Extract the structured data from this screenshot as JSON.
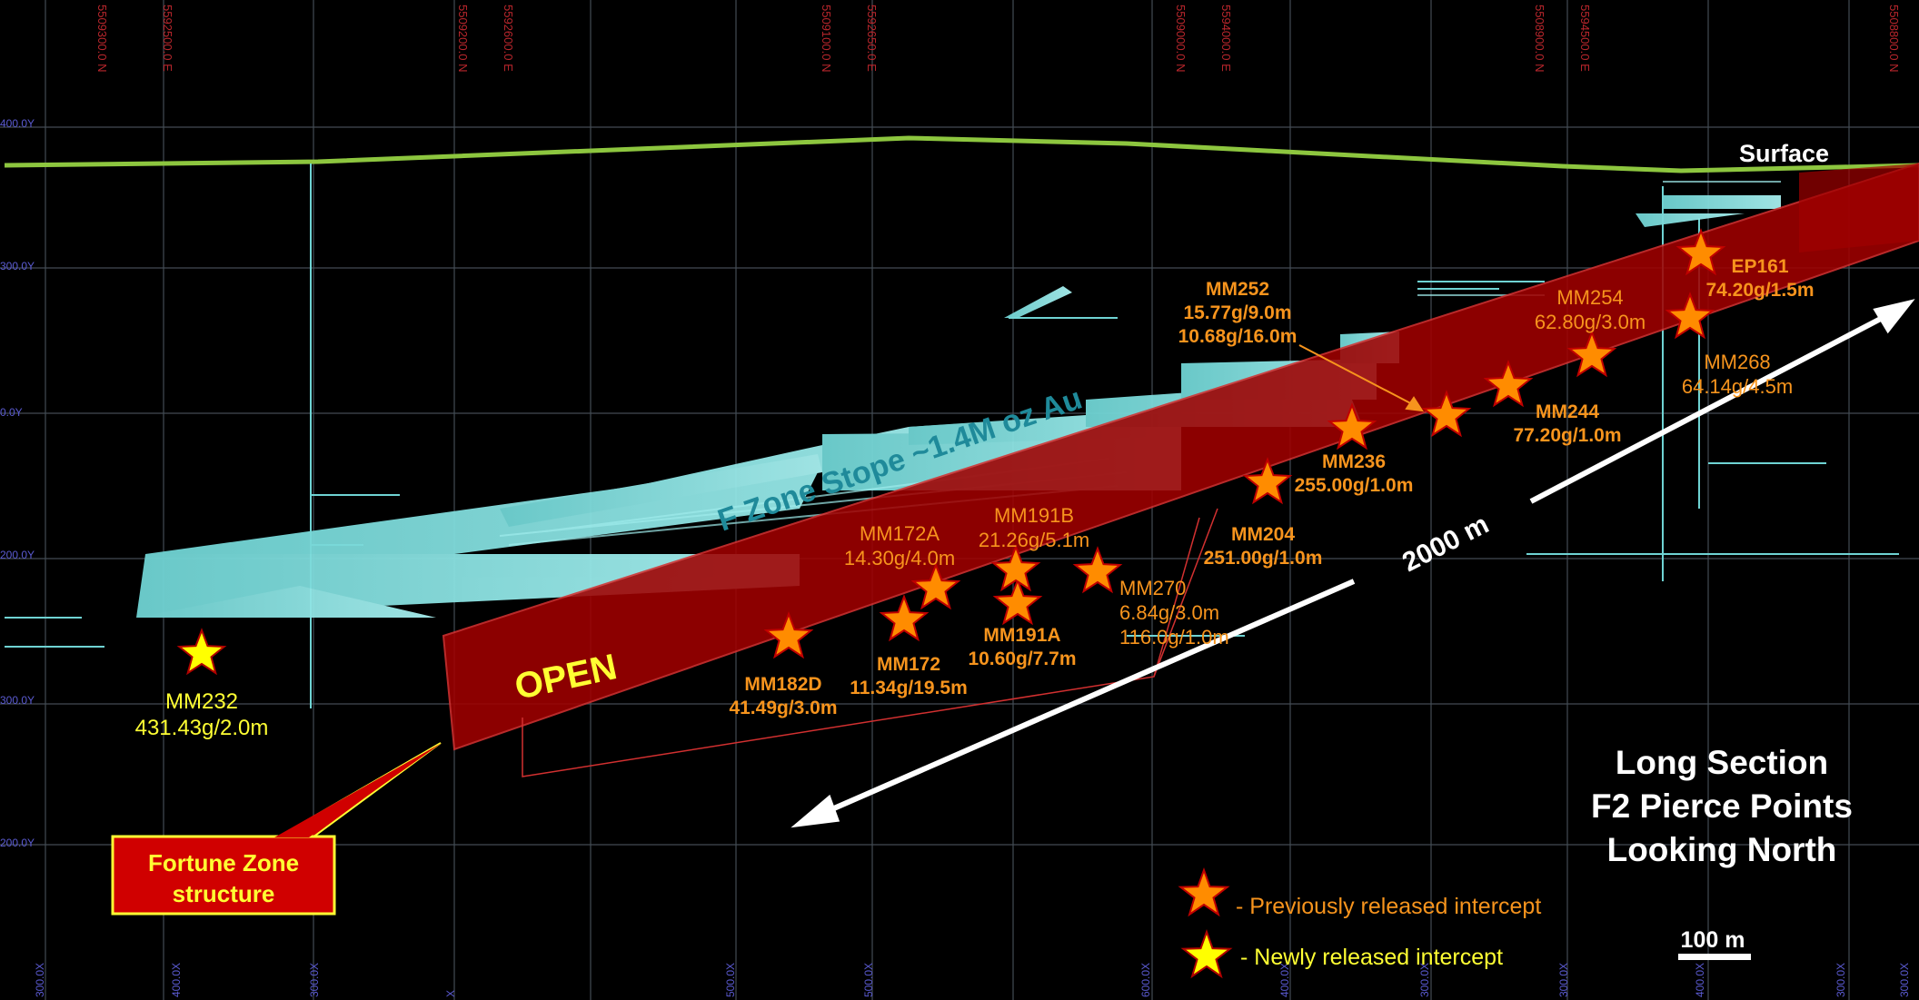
{
  "title": {
    "line1": "Long Section",
    "line2": "F2 Pierce Points",
    "line3": "Looking North"
  },
  "surface_label": "Surface",
  "stope_label": "F Zone Stope ~1.4M oz Au",
  "open_label": "OPEN",
  "distance_label": "2000 m",
  "structure_callout": {
    "line1": "Fortune Zone",
    "line2": "structure"
  },
  "scale_bar": {
    "label": "100 m"
  },
  "legend": {
    "previous": "- Previously released intercept",
    "new": "- Newly released intercept"
  },
  "grid_top_labels": [
    "5509300.0 N",
    "5592500.0 E",
    "5509200.0 N",
    "5592600.0 E",
    "5509100.0 N",
    "5592650.0 E",
    "5509000.0 N",
    "5594000.0 E",
    "5508900.0 N",
    "5594500.0 E",
    "5508800.0 N"
  ],
  "grid_left_labels": [
    "400.0Y",
    "300.0Y",
    "0.0Y",
    "200.0Y",
    "300.0Y",
    "200.0Y",
    "400.0Y"
  ],
  "grid_bottom_labels": [
    "300.0X",
    "400.0X",
    "300.0X",
    "X",
    "500.0X",
    "500.0X",
    "600.0X",
    "400.0X",
    "300.0X",
    "300.0X",
    "400.0X",
    "300.0X",
    "300.0X"
  ],
  "colors": {
    "background": "#000000",
    "surface": "#8dc63f",
    "stope": "#7fe0e0",
    "zone": "#a00000",
    "previous_text": "#f7941d",
    "new_text": "#ffff33",
    "label_orange": "#f7941d",
    "grid": "#5a6470"
  },
  "intercepts": [
    {
      "id": "MM232",
      "value": "431.43g/2.0m",
      "type": "new"
    },
    {
      "id": "MM182D",
      "value": "41.49g/3.0m",
      "type": "previous"
    },
    {
      "id": "MM172",
      "value": "11.34g/19.5m",
      "type": "previous"
    },
    {
      "id": "MM172A",
      "value": "14.30g/4.0m",
      "type": "previous"
    },
    {
      "id": "MM191A",
      "value": "10.60g/7.7m",
      "type": "previous"
    },
    {
      "id": "MM191B",
      "value": "21.26g/5.1m",
      "type": "previous"
    },
    {
      "id": "MM270",
      "value": "6.84g/3.0m",
      "value2": "116.0g/1.0m",
      "type": "previous"
    },
    {
      "id": "MM204",
      "value": "251.00g/1.0m",
      "type": "previous"
    },
    {
      "id": "MM236",
      "value": "255.00g/1.0m",
      "type": "previous"
    },
    {
      "id": "MM252",
      "value": "15.77g/9.0m",
      "value2": "10.68g/16.0m",
      "type": "previous"
    },
    {
      "id": "MM244",
      "value": "77.20g/1.0m",
      "type": "previous"
    },
    {
      "id": "MM254",
      "value": "62.80g/3.0m",
      "type": "previous"
    },
    {
      "id": "MM268",
      "value": "64.14g/4.5m",
      "type": "previous"
    },
    {
      "id": "EP161",
      "value": "74.20g/1.5m",
      "type": "previous"
    }
  ]
}
